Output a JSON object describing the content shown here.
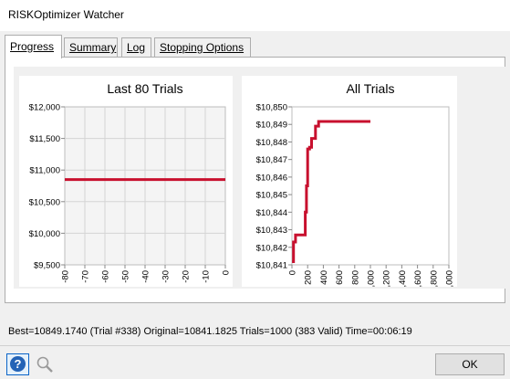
{
  "window": {
    "title": "RISKOptimizer Watcher"
  },
  "tabs": [
    {
      "label": "Progress",
      "active": true
    },
    {
      "label": "Summary",
      "active": false
    },
    {
      "label": "Log",
      "active": false
    },
    {
      "label": "Stopping Options",
      "active": false
    }
  ],
  "status_text": "Best=10849.1740 (Trial #338) Original=10841.1825 Trials=1000 (383 Valid) Time=00:06:19",
  "buttons": {
    "ok_label": "OK",
    "help_icon": "help-icon",
    "zoom_icon": "magnifier-icon"
  },
  "colors": {
    "series": "#c8102e",
    "grid": "#d4d4d4"
  },
  "chart_data": [
    {
      "type": "line",
      "title": "Last 80 Trials",
      "xlabel": "",
      "ylabel": "",
      "xlim": [
        -80,
        0
      ],
      "ylim": [
        9500,
        12000
      ],
      "x_ticks": [
        "-80",
        "-70",
        "-60",
        "-50",
        "-40",
        "-30",
        "-20",
        "-10",
        "0"
      ],
      "y_ticks": [
        "$9,500",
        "$10,000",
        "$10,500",
        "$11,000",
        "$11,500",
        "$12,000"
      ],
      "grid": true,
      "series": [
        {
          "x": [
            -80,
            0
          ],
          "y": [
            10849,
            10849
          ]
        }
      ]
    },
    {
      "type": "line",
      "title": "All Trials",
      "xlabel": "",
      "ylabel": "",
      "xlim": [
        0,
        2000
      ],
      "ylim": [
        10841,
        10850
      ],
      "x_ticks": [
        "0",
        "200",
        "400",
        "600",
        "800",
        "1,000",
        "1,200",
        "1,400",
        "1,600",
        "1,800",
        "2,000"
      ],
      "y_ticks": [
        "$10,841",
        "$10,842",
        "$10,843",
        "$10,844",
        "$10,845",
        "$10,846",
        "$10,847",
        "$10,848",
        "$10,849",
        "$10,850"
      ],
      "grid": false,
      "series": [
        {
          "x": [
            1,
            20,
            20,
            45,
            45,
            170,
            170,
            185,
            185,
            200,
            200,
            225,
            225,
            250,
            250,
            300,
            300,
            340,
            340,
            1000
          ],
          "y": [
            10841.18,
            10841.18,
            10842.3,
            10842.3,
            10842.7,
            10842.7,
            10844.0,
            10844.0,
            10845.5,
            10845.5,
            10847.6,
            10847.6,
            10847.7,
            10847.7,
            10848.2,
            10848.2,
            10848.9,
            10848.9,
            10849.17,
            10849.17
          ]
        }
      ]
    }
  ]
}
